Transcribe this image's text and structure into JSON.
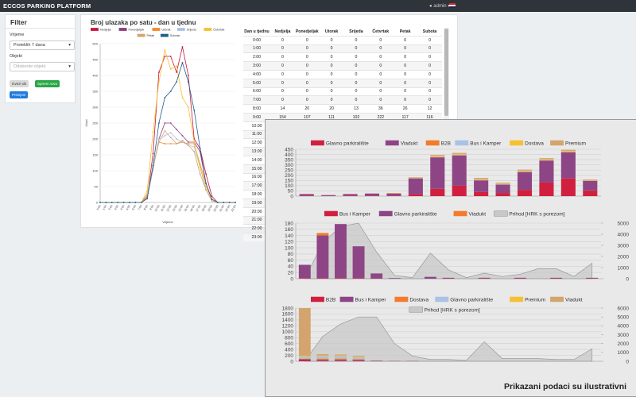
{
  "navbar": {
    "brand": "ECCOS PARKING PLATFORM",
    "user": "admin"
  },
  "filter": {
    "title": "Filter",
    "time_label": "Vrijeme",
    "time_value": "Proteklih 7 dana",
    "object_label": "Objekt",
    "object_value": "Odaberite objekt",
    "buttons": [
      "Izvezi xls",
      "Spremi novo",
      "Primijeni"
    ]
  },
  "panel_title": "Broj ulazaka po satu - dan u tjednu",
  "chart_data": [
    {
      "type": "line",
      "xlabel": "Vrijeme",
      "ylabel": "Ulazi",
      "categories": [
        "0:00",
        "1:00",
        "2:00",
        "3:00",
        "4:00",
        "5:00",
        "6:00",
        "7:00",
        "8:00",
        "9:00",
        "10:00",
        "11:00",
        "12:00",
        "13:00",
        "14:00",
        "15:00",
        "16:00",
        "17:00",
        "18:00",
        "19:00",
        "20:00",
        "21:00",
        "22:00",
        "23:00"
      ],
      "ylim": [
        0,
        500
      ],
      "yticks": [
        0,
        50,
        100,
        150,
        200,
        250,
        300,
        350,
        400,
        450,
        500
      ],
      "grid": true,
      "series": [
        {
          "name": "Nedjelja",
          "color": "#c8143c",
          "values": [
            0,
            0,
            0,
            0,
            0,
            0,
            0,
            0,
            14,
            154,
            410,
            460,
            460,
            410,
            490,
            400,
            200,
            170,
            90,
            20,
            0,
            0,
            0,
            0
          ]
        },
        {
          "name": "Ponedjeljak",
          "color": "#8e3c7e",
          "values": [
            0,
            0,
            0,
            0,
            0,
            0,
            0,
            0,
            20,
            107,
            200,
            250,
            250,
            230,
            210,
            190,
            190,
            160,
            60,
            10,
            0,
            0,
            0,
            0
          ]
        },
        {
          "name": "Utorak",
          "color": "#f28a2e",
          "values": [
            0,
            0,
            0,
            0,
            0,
            0,
            0,
            0,
            20,
            111,
            190,
            185,
            185,
            185,
            190,
            185,
            185,
            120,
            60,
            10,
            0,
            0,
            0,
            0
          ]
        },
        {
          "name": "Srijeda",
          "color": "#a9c2e6",
          "values": [
            0,
            0,
            0,
            0,
            0,
            0,
            0,
            0,
            13,
            102,
            200,
            210,
            220,
            200,
            190,
            180,
            175,
            110,
            40,
            10,
            0,
            0,
            0,
            0
          ]
        },
        {
          "name": "Četvrtak",
          "color": "#f6c033",
          "values": [
            0,
            0,
            0,
            0,
            0,
            0,
            0,
            0,
            36,
            222,
            380,
            480,
            420,
            430,
            330,
            300,
            190,
            110,
            50,
            10,
            0,
            0,
            0,
            0
          ]
        },
        {
          "name": "Petak",
          "color": "#d4a46e",
          "values": [
            0,
            0,
            0,
            0,
            0,
            0,
            0,
            0,
            26,
            117,
            190,
            225,
            205,
            185,
            195,
            180,
            160,
            90,
            40,
            5,
            0,
            0,
            0,
            0
          ]
        },
        {
          "name": "Subota",
          "color": "#1e5f8a",
          "values": [
            0,
            0,
            0,
            0,
            0,
            0,
            0,
            0,
            12,
            116,
            250,
            330,
            350,
            380,
            440,
            380,
            290,
            170,
            60,
            10,
            0,
            0,
            0,
            0
          ]
        }
      ]
    },
    {
      "type": "stacked_bar",
      "categories": [
        null,
        null,
        null,
        null,
        null,
        null,
        null,
        null,
        null,
        null,
        null,
        null,
        null,
        null
      ],
      "ylim": [
        0,
        450
      ],
      "yticks": [
        0,
        50,
        100,
        150,
        200,
        250,
        300,
        350,
        400,
        450
      ],
      "grid": true,
      "series": [
        {
          "name": "Glavno parkiralište",
          "color": "#d1203f",
          "values": [
            5,
            2,
            5,
            5,
            5,
            20,
            70,
            100,
            40,
            30,
            60,
            130,
            170,
            55
          ]
        },
        {
          "name": "Viadukt",
          "color": "#8e4585",
          "values": [
            15,
            8,
            15,
            20,
            20,
            150,
            300,
            290,
            110,
            80,
            170,
            210,
            250,
            90
          ]
        },
        {
          "name": "B2B",
          "color": "#f47b2a",
          "values": [
            0,
            0,
            0,
            0,
            3,
            3,
            5,
            5,
            5,
            3,
            5,
            5,
            5,
            3
          ]
        },
        {
          "name": "Bus i Kamper",
          "color": "#a9c2e6",
          "values": [
            0,
            0,
            0,
            0,
            0,
            2,
            5,
            5,
            5,
            5,
            5,
            5,
            5,
            3
          ]
        },
        {
          "name": "Dostava",
          "color": "#f6c033",
          "values": [
            0,
            0,
            0,
            0,
            0,
            2,
            5,
            5,
            5,
            5,
            5,
            5,
            5,
            3
          ]
        },
        {
          "name": "Premium",
          "color": "#d4a46e",
          "values": [
            0,
            0,
            0,
            0,
            2,
            5,
            10,
            10,
            10,
            7,
            10,
            10,
            10,
            6
          ]
        }
      ]
    },
    {
      "type": "combo",
      "categories": [
        null,
        null,
        null,
        null,
        null,
        null,
        null,
        null,
        null,
        null,
        null,
        null,
        null,
        null,
        null,
        null,
        null
      ],
      "ylim": [
        0,
        180
      ],
      "yticks": [
        0,
        20,
        40,
        60,
        80,
        100,
        120,
        140,
        160,
        180
      ],
      "y2lim": [
        0,
        5000
      ],
      "y2ticks": [
        0,
        1000,
        2000,
        3000,
        4000,
        5000
      ],
      "grid": true,
      "series": [
        {
          "name": "Bus i Kamper",
          "color": "#d1203f",
          "values": [
            2,
            2,
            2,
            2,
            1,
            0,
            0,
            0,
            1,
            0,
            1,
            0,
            1,
            0,
            1,
            0,
            1
          ]
        },
        {
          "name": "Glavno parkiralište",
          "color": "#8e4585",
          "values": [
            43,
            138,
            175,
            103,
            16,
            2,
            0,
            6,
            2,
            0,
            2,
            0,
            2,
            0,
            2,
            0,
            2
          ]
        },
        {
          "name": "Viadukt",
          "color": "#f47b2a",
          "values": [
            0,
            8,
            0,
            0,
            0,
            0,
            0,
            0,
            0,
            0,
            0,
            0,
            0,
            0,
            0,
            0,
            0
          ]
        },
        {
          "name": "Prihod [HRK s porezom]",
          "color": "#c8c8c8",
          "kind": "area",
          "axis": "y2",
          "values": [
            0,
            3200,
            4700,
            5000,
            2400,
            300,
            100,
            2300,
            800,
            100,
            500,
            200,
            400,
            900,
            900,
            200,
            1400
          ]
        }
      ]
    },
    {
      "type": "combo",
      "categories": [
        null,
        null,
        null,
        null,
        null,
        null,
        null,
        null,
        null,
        null,
        null,
        null,
        null,
        null,
        null,
        null,
        null
      ],
      "ylim": [
        0,
        1800
      ],
      "yticks": [
        0,
        200,
        400,
        600,
        800,
        1000,
        1200,
        1400,
        1600,
        1800
      ],
      "y2lim": [
        0,
        6000
      ],
      "y2ticks": [
        0,
        1000,
        2000,
        3000,
        4000,
        5000,
        6000
      ],
      "grid": true,
      "series": [
        {
          "name": "B2B",
          "color": "#d1203f",
          "values": [
            40,
            20,
            20,
            15,
            10,
            5,
            5,
            0,
            0,
            0,
            0,
            0,
            0,
            0,
            0,
            0,
            0
          ]
        },
        {
          "name": "Bus i Kamper",
          "color": "#8e4585",
          "values": [
            30,
            30,
            30,
            25,
            10,
            5,
            5,
            0,
            0,
            0,
            0,
            0,
            0,
            0,
            0,
            0,
            0
          ]
        },
        {
          "name": "Dostava",
          "color": "#f47b2a",
          "values": [
            20,
            40,
            40,
            30,
            0,
            0,
            0,
            0,
            0,
            0,
            0,
            0,
            0,
            0,
            0,
            0,
            0
          ]
        },
        {
          "name": "Glavno parkiralište",
          "color": "#a9c2e6",
          "values": [
            60,
            80,
            80,
            60,
            0,
            0,
            0,
            0,
            0,
            0,
            0,
            0,
            0,
            0,
            0,
            0,
            0
          ]
        },
        {
          "name": "Premium",
          "color": "#f6c033",
          "values": [
            30,
            30,
            30,
            20,
            0,
            0,
            0,
            0,
            0,
            0,
            0,
            0,
            0,
            0,
            0,
            0,
            0
          ]
        },
        {
          "name": "Viadukt",
          "color": "#d4a46e",
          "values": [
            1620,
            40,
            30,
            30,
            0,
            0,
            0,
            0,
            0,
            0,
            0,
            0,
            0,
            0,
            0,
            0,
            0
          ]
        },
        {
          "name": "Prihod [HRK s porezom]",
          "color": "#c8c8c8",
          "kind": "area",
          "axis": "y2",
          "values": [
            0,
            2800,
            4200,
            5000,
            5000,
            2000,
            600,
            200,
            200,
            100,
            2200,
            300,
            300,
            300,
            200,
            200,
            1400
          ]
        }
      ]
    }
  ],
  "table": {
    "header": [
      "Dan u tjednu",
      "Nedjelja",
      "Ponedjeljak",
      "Utorak",
      "Srijeda",
      "Četvrtak",
      "Petak",
      "Subota"
    ],
    "rows": [
      [
        "0:00",
        0,
        0,
        0,
        0,
        0,
        0,
        0
      ],
      [
        "1:00",
        0,
        0,
        0,
        0,
        0,
        0,
        0
      ],
      [
        "2:00",
        0,
        0,
        0,
        0,
        0,
        0,
        0
      ],
      [
        "3:00",
        0,
        0,
        0,
        0,
        0,
        0,
        0
      ],
      [
        "4:00",
        0,
        0,
        0,
        0,
        0,
        0,
        0
      ],
      [
        "5:00",
        0,
        0,
        0,
        0,
        0,
        0,
        0
      ],
      [
        "6:00",
        0,
        0,
        0,
        0,
        0,
        0,
        0
      ],
      [
        "7:00",
        0,
        0,
        0,
        0,
        0,
        0,
        0
      ],
      [
        "8:00",
        14,
        20,
        20,
        13,
        36,
        26,
        12
      ],
      [
        "9:00",
        154,
        107,
        111,
        102,
        222,
        117,
        116
      ],
      [
        "10:00"
      ],
      [
        "11:00"
      ],
      [
        "12:00"
      ],
      [
        "13:00"
      ],
      [
        "14:00"
      ],
      [
        "15:00"
      ],
      [
        "16:00"
      ],
      [
        "17:00"
      ],
      [
        "18:00"
      ],
      [
        "19:00"
      ],
      [
        "20:00"
      ],
      [
        "21:00"
      ],
      [
        "22:00"
      ],
      [
        "23:00"
      ]
    ]
  },
  "overlay_caption": "Prikazani podaci su ilustrativni"
}
